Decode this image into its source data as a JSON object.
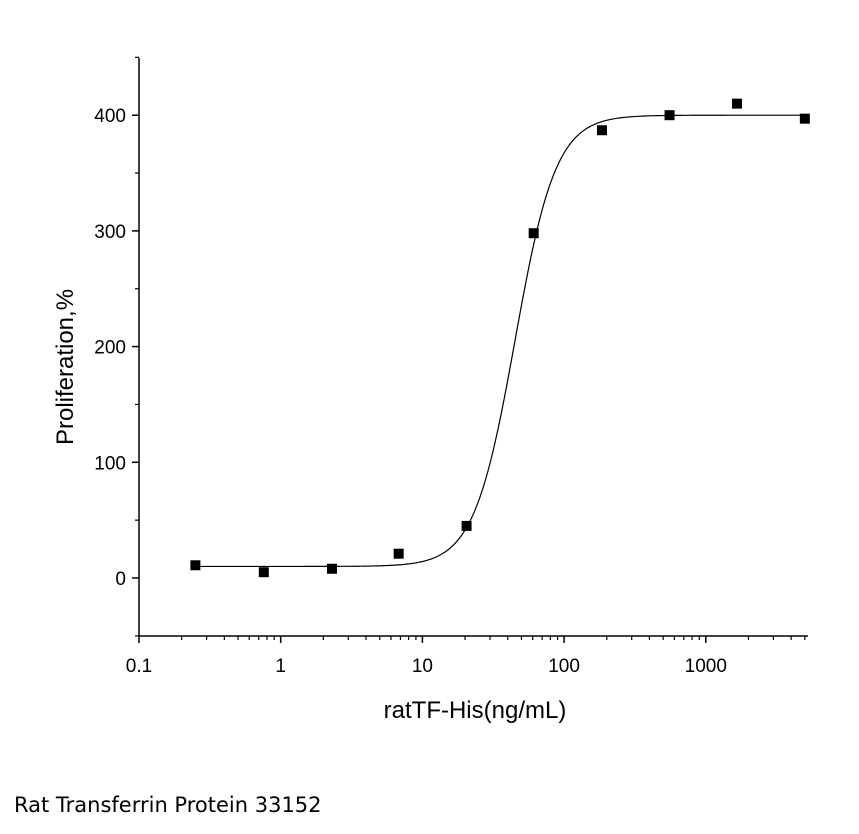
{
  "chart_data": {
    "type": "scatter",
    "xlabel": "ratTF-His(ng/mL)",
    "ylabel": "Proliferation,%",
    "x_scale": "log",
    "xlim": [
      0.1,
      5000
    ],
    "ylim": [
      -50,
      450
    ],
    "x_ticks": [
      "0.1",
      "1",
      "10",
      "100",
      "1000"
    ],
    "y_ticks": [
      "0",
      "100",
      "200",
      "300",
      "400"
    ],
    "grid": false,
    "legend": "none",
    "series": [
      {
        "marker": "square",
        "x": [
          0.25,
          0.76,
          2.3,
          6.8,
          20.5,
          61,
          185,
          555,
          1660,
          5000
        ],
        "y": [
          11,
          5,
          8,
          21,
          45,
          298,
          387,
          400,
          410,
          397
        ]
      }
    ],
    "fit_curve": {
      "type": "four-parameter-logistic",
      "bottom": 10,
      "top": 400,
      "ec50": 45,
      "hill_slope": 3
    },
    "color": "#000000"
  },
  "caption": "Rat Transferrin Protein 33152"
}
